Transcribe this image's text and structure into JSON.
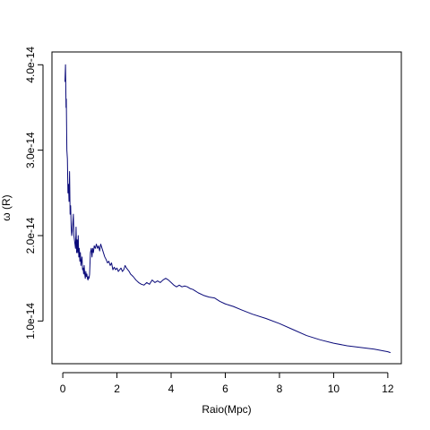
{
  "chart_data": {
    "type": "line",
    "title": "",
    "xlabel": "Raio(Mpc)",
    "ylabel": "ω (R)",
    "xlim": [
      -0.4,
      12.5
    ],
    "ylim": [
      5e-15,
      4.15e-14
    ],
    "x_ticks": [
      {
        "value": 0,
        "label": "0"
      },
      {
        "value": 2,
        "label": "2"
      },
      {
        "value": 4,
        "label": "4"
      },
      {
        "value": 6,
        "label": "6"
      },
      {
        "value": 8,
        "label": "8"
      },
      {
        "value": 10,
        "label": "10"
      },
      {
        "value": 12,
        "label": "12"
      }
    ],
    "y_ticks": [
      {
        "value": 1e-14,
        "label": "1.0e-14"
      },
      {
        "value": 2e-14,
        "label": "2.0e-14"
      },
      {
        "value": 3e-14,
        "label": "3.0e-14"
      },
      {
        "value": 4e-14,
        "label": "4.0e-14"
      }
    ],
    "grid": false,
    "legend": "none",
    "series": [
      {
        "color": "#0b0b7a",
        "x": [
          0.08,
          0.1,
          0.12,
          0.13,
          0.15,
          0.17,
          0.19,
          0.21,
          0.23,
          0.25,
          0.27,
          0.29,
          0.31,
          0.33,
          0.35,
          0.37,
          0.39,
          0.41,
          0.43,
          0.45,
          0.47,
          0.49,
          0.51,
          0.53,
          0.55,
          0.57,
          0.59,
          0.61,
          0.63,
          0.65,
          0.67,
          0.69,
          0.71,
          0.73,
          0.75,
          0.77,
          0.79,
          0.81,
          0.83,
          0.85,
          0.87,
          0.89,
          0.91,
          0.93,
          0.95,
          0.97,
          0.99,
          1.02,
          1.05,
          1.08,
          1.1,
          1.13,
          1.16,
          1.2,
          1.24,
          1.28,
          1.32,
          1.36,
          1.4,
          1.45,
          1.5,
          1.55,
          1.6,
          1.65,
          1.7,
          1.75,
          1.8,
          1.85,
          1.9,
          1.95,
          2.0,
          2.05,
          2.1,
          2.15,
          2.2,
          2.25,
          2.3,
          2.35,
          2.4,
          2.45,
          2.5,
          2.6,
          2.7,
          2.8,
          2.9,
          3.0,
          3.1,
          3.2,
          3.3,
          3.4,
          3.5,
          3.6,
          3.7,
          3.8,
          3.9,
          4.0,
          4.1,
          4.2,
          4.3,
          4.4,
          4.5,
          4.6,
          4.7,
          4.8,
          4.9,
          5.0,
          5.2,
          5.4,
          5.6,
          5.8,
          6.0,
          6.3,
          6.6,
          7.0,
          7.5,
          8.0,
          8.5,
          9.0,
          9.5,
          10.0,
          10.5,
          11.0,
          11.5,
          12.0,
          12.1
        ],
        "y": [
          3.8e-14,
          4e-14,
          3.5e-14,
          3.6e-14,
          3e-14,
          2.9e-14,
          2.5e-14,
          2.6e-14,
          2.4e-14,
          2.75e-14,
          2.25e-14,
          2.35e-14,
          2.1e-14,
          2e-14,
          2.05e-14,
          2.15e-14,
          2.25e-14,
          2e-14,
          1.95e-14,
          1.9e-14,
          1.85e-14,
          2.1e-14,
          1.8e-14,
          1.95e-14,
          1.8e-14,
          2e-14,
          1.75e-14,
          1.85e-14,
          1.7e-14,
          1.8e-14,
          1.65e-14,
          1.7e-14,
          1.75e-14,
          1.6e-14,
          1.62e-14,
          1.55e-14,
          1.65e-14,
          1.55e-14,
          1.5e-14,
          1.58e-14,
          1.52e-14,
          1.55e-14,
          1.5e-14,
          1.48e-14,
          1.52e-14,
          1.5e-14,
          1.55e-14,
          1.8e-14,
          1.85e-14,
          1.75e-14,
          1.85e-14,
          1.8e-14,
          1.88e-14,
          1.85e-14,
          1.9e-14,
          1.85e-14,
          1.88e-14,
          1.82e-14,
          1.9e-14,
          1.85e-14,
          1.8e-14,
          1.75e-14,
          1.72e-14,
          1.68e-14,
          1.7e-14,
          1.65e-14,
          1.68e-14,
          1.6e-14,
          1.63e-14,
          1.6e-14,
          1.62e-14,
          1.58e-14,
          1.6e-14,
          1.62e-14,
          1.58e-14,
          1.6e-14,
          1.65e-14,
          1.62e-14,
          1.6e-14,
          1.58e-14,
          1.55e-14,
          1.52e-14,
          1.48e-14,
          1.45e-14,
          1.43e-14,
          1.42e-14,
          1.45e-14,
          1.43e-14,
          1.48e-14,
          1.45e-14,
          1.47e-14,
          1.45e-14,
          1.48e-14,
          1.5e-14,
          1.48e-14,
          1.45e-14,
          1.42e-14,
          1.4e-14,
          1.42e-14,
          1.4e-14,
          1.41e-14,
          1.4e-14,
          1.38e-14,
          1.37e-14,
          1.35e-14,
          1.33e-14,
          1.3e-14,
          1.28e-14,
          1.27e-14,
          1.23e-14,
          1.2e-14,
          1.17e-14,
          1.13e-14,
          1.08e-14,
          1.03e-14,
          9.7e-15,
          9e-15,
          8.3e-15,
          7.8e-15,
          7.4e-15,
          7.1e-15,
          6.9e-15,
          6.7e-15,
          6.4e-15,
          6.3e-15
        ]
      }
    ]
  }
}
